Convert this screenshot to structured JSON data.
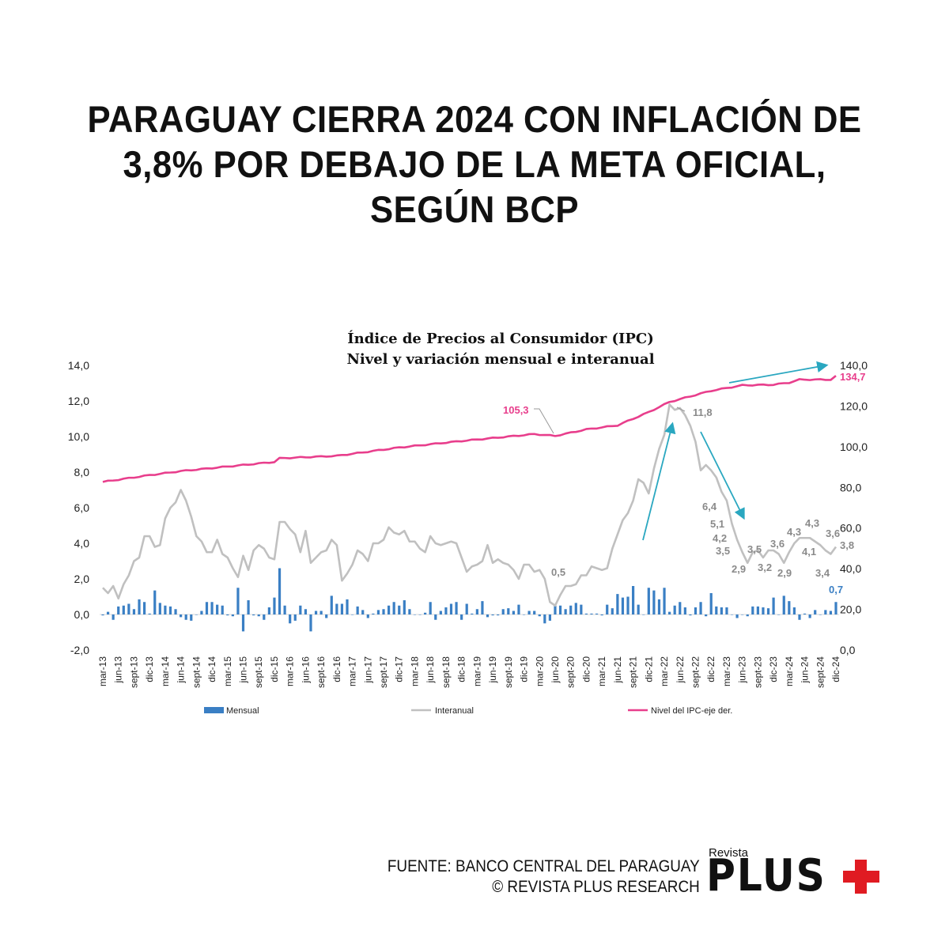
{
  "headline": [
    "PARAGUAY CIERRA 2024 CON INFLACIÓN DE",
    "3,8% POR DEBAJO DE LA META OFICIAL,",
    "SEGÚN BCP"
  ],
  "footer": {
    "source": "FUENTE: BANCO CENTRAL DEL PARAGUAY",
    "copyright": "© REVISTA PLUS RESEARCH"
  },
  "logo": {
    "small": "Revista",
    "big": "PLUS"
  },
  "colors": {
    "mensual": "#3a7fc4",
    "interanual": "#c0c0c0",
    "nivel": "#e83e8c",
    "arrow": "#2aa7c0",
    "label_gray": "#8a8a8a"
  },
  "chart_data": {
    "type": "bar+line",
    "title": "Índice de Precios al Consumidor (IPC)",
    "subtitle": "Nivel y variación mensual e interanual",
    "left_axis": {
      "range": [
        -2,
        14
      ],
      "ticks": [
        "14,0",
        "12,0",
        "10,0",
        "8,0",
        "6,0",
        "4,0",
        "2,0",
        "0,0",
        "-2,0"
      ]
    },
    "right_axis": {
      "range": [
        0,
        140
      ],
      "ticks": [
        "140,0",
        "120,0",
        "100,0",
        "80,0",
        "60,0",
        "40,0",
        "20,0",
        "0,0"
      ]
    },
    "x_tick_labels": [
      "mar-13",
      "jun-13",
      "sept-13",
      "dic-13",
      "mar-14",
      "jun-14",
      "sept-14",
      "dic-14",
      "mar-15",
      "jun-15",
      "sept-15",
      "dic-15",
      "mar-16",
      "jun-16",
      "sept-16",
      "dic-16",
      "mar-17",
      "jun-17",
      "sept-17",
      "dic-17",
      "mar-18",
      "jun-18",
      "sept-18",
      "dic-18",
      "mar-19",
      "jun-19",
      "sept-19",
      "dic-19",
      "mar-20",
      "jun-20",
      "sept-20",
      "dic-20",
      "mar-21",
      "jun-21",
      "sept-21",
      "dic-21",
      "mar-22",
      "jun-22",
      "sept-22",
      "dic-22",
      "mar-23",
      "jun-23",
      "sept-23",
      "dic-23",
      "mar-24",
      "jun-24",
      "sept-24",
      "dic-24"
    ],
    "legend": {
      "position": "bottom",
      "items": [
        "Mensual",
        "Interanual",
        "Nivel del IPC-eje der."
      ]
    },
    "series": [
      {
        "name": "Mensual",
        "axis": "left",
        "type": "bar",
        "values": [
          -0.05,
          0.15,
          -0.3,
          0.45,
          0.5,
          0.6,
          0.3,
          0.85,
          0.7,
          0.05,
          1.35,
          0.65,
          0.5,
          0.45,
          0.3,
          -0.15,
          -0.3,
          -0.35,
          0,
          0.2,
          0.7,
          0.7,
          0.55,
          0.5,
          -0.05,
          -0.1,
          1.5,
          -0.95,
          0.8,
          -0.05,
          -0.1,
          -0.3,
          0.4,
          0.95,
          2.6,
          0.5,
          -0.5,
          -0.35,
          0.5,
          0.3,
          -0.95,
          0.2,
          0.2,
          -0.2,
          1.05,
          0.6,
          0.6,
          0.85,
          0,
          0.45,
          0.25,
          -0.2,
          0.05,
          0.25,
          0.3,
          0.5,
          0.7,
          0.5,
          0.8,
          0.3,
          0,
          0,
          0.1,
          0.7,
          -0.3,
          0.2,
          0.4,
          0.6,
          0.7,
          -0.3,
          0.6,
          0.05,
          0.3,
          0.75,
          -0.15,
          -0.05,
          -0.05,
          0.3,
          0.35,
          0.2,
          0.55,
          0,
          0.2,
          0.2,
          -0.1,
          -0.5,
          -0.35,
          0.5,
          0.5,
          0.3,
          0.5,
          0.65,
          0.55,
          0.05,
          0.05,
          0.05,
          -0.05,
          0.55,
          0.35,
          1.15,
          0.95,
          1.0,
          1.6,
          0.55,
          0,
          1.5,
          1.35,
          0.85,
          1.5,
          0.15,
          0.5,
          0.7,
          0.4,
          -0.05,
          0.4,
          0.7,
          -0.1,
          1.2,
          0.45,
          0.4,
          0.4,
          0,
          -0.2,
          0,
          -0.1,
          0.45,
          0.45,
          0.4,
          0.35,
          0.95,
          0,
          1.05,
          0.75,
          0.4,
          -0.3,
          0.05,
          -0.2,
          0.25,
          0,
          0.25,
          0.2,
          0.7
        ]
      },
      {
        "name": "Interanual",
        "axis": "left",
        "type": "line",
        "values": [
          1.5,
          1.2,
          1.6,
          0.9,
          1.7,
          2.2,
          3.0,
          3.2,
          4.4,
          4.4,
          3.8,
          3.9,
          5.4,
          6.0,
          6.3,
          7.0,
          6.4,
          5.5,
          4.4,
          4.1,
          3.5,
          3.5,
          4.2,
          3.4,
          3.2,
          2.6,
          2.1,
          3.3,
          2.5,
          3.6,
          3.9,
          3.7,
          3.2,
          3.1,
          5.2,
          5.2,
          4.8,
          4.5,
          3.5,
          4.7,
          2.9,
          3.2,
          3.5,
          3.6,
          4.2,
          3.9,
          1.9,
          2.3,
          2.8,
          3.6,
          3.4,
          3.0,
          4.0,
          4.0,
          4.2,
          4.9,
          4.6,
          4.5,
          4.7,
          4.1,
          4.1,
          3.7,
          3.5,
          4.4,
          4.0,
          3.9,
          4.0,
          4.1,
          4.0,
          3.2,
          2.4,
          2.7,
          2.8,
          3.0,
          3.9,
          2.9,
          3.1,
          2.9,
          2.8,
          2.5,
          2.0,
          2.8,
          2.8,
          2.4,
          2.5,
          2.0,
          0.7,
          0.5,
          1.1,
          1.6,
          1.6,
          1.7,
          2.2,
          2.2,
          2.7,
          2.6,
          2.5,
          2.6,
          3.7,
          4.5,
          5.3,
          5.7,
          6.4,
          7.6,
          7.4,
          6.8,
          8.2,
          9.3,
          10.1,
          11.8,
          11.5,
          11.6,
          11.2,
          10.6,
          9.7,
          8.1,
          8.4,
          8.1,
          7.7,
          6.9,
          6.4,
          5.1,
          4.2,
          3.5,
          2.9,
          3.5,
          3.6,
          3.2,
          3.6,
          3.6,
          3.4,
          2.9,
          3.5,
          4.0,
          4.3,
          4.3,
          4.3,
          4.1,
          3.9,
          3.6,
          3.4,
          3.8
        ]
      },
      {
        "name": "Nivel del IPC-eje der.",
        "axis": "right",
        "type": "line",
        "keypoints": [
          [
            0,
            82.7
          ],
          [
            9,
            86.0
          ],
          [
            15,
            88.0
          ],
          [
            21,
            89.5
          ],
          [
            33,
            92.5
          ],
          [
            34,
            94.3
          ],
          [
            45,
            95.5
          ],
          [
            57,
            99.6
          ],
          [
            69,
            102.8
          ],
          [
            83,
            106.2
          ],
          [
            87,
            105.3
          ],
          [
            93,
            108.5
          ],
          [
            99,
            110.5
          ],
          [
            105,
            117.0
          ],
          [
            109,
            122.0
          ],
          [
            117,
            127.5
          ],
          [
            123,
            130.2
          ],
          [
            129,
            130.5
          ],
          [
            132,
            131.5
          ],
          [
            134,
            133.0
          ],
          [
            140,
            133.0
          ],
          [
            141,
            134.7
          ]
        ]
      }
    ],
    "annotations": [
      {
        "text": "105,3",
        "series": "Nivel",
        "color": "nivel"
      },
      {
        "text": "134,7",
        "series": "Nivel",
        "color": "nivel"
      },
      {
        "text": "0,5",
        "series": "Interanual",
        "color": "label_gray"
      },
      {
        "text": "11,8",
        "series": "Interanual",
        "color": "label_gray"
      },
      {
        "text": "6,4",
        "series": "Interanual",
        "color": "label_gray"
      },
      {
        "text": "5,1",
        "series": "Interanual",
        "color": "label_gray"
      },
      {
        "text": "4,2",
        "series": "Interanual",
        "color": "label_gray"
      },
      {
        "text": "3,5",
        "series": "Interanual",
        "color": "label_gray"
      },
      {
        "text": "2,9",
        "series": "Interanual",
        "color": "label_gray"
      },
      {
        "text": "3,5",
        "series": "Interanual",
        "color": "label_gray"
      },
      {
        "text": "3,2",
        "series": "Interanual",
        "color": "label_gray"
      },
      {
        "text": "3,6",
        "series": "Interanual",
        "color": "label_gray"
      },
      {
        "text": "2,9",
        "series": "Interanual",
        "color": "label_gray"
      },
      {
        "text": "4,3",
        "series": "Interanual",
        "color": "label_gray"
      },
      {
        "text": "4,3",
        "series": "Interanual",
        "color": "label_gray"
      },
      {
        "text": "4,1",
        "series": "Interanual",
        "color": "label_gray"
      },
      {
        "text": "3,6",
        "series": "Interanual",
        "color": "label_gray"
      },
      {
        "text": "3,4",
        "series": "Interanual",
        "color": "label_gray"
      },
      {
        "text": "3,8",
        "series": "Interanual",
        "color": "label_gray"
      },
      {
        "text": "0,7",
        "series": "Mensual",
        "color": "mensual"
      }
    ]
  }
}
